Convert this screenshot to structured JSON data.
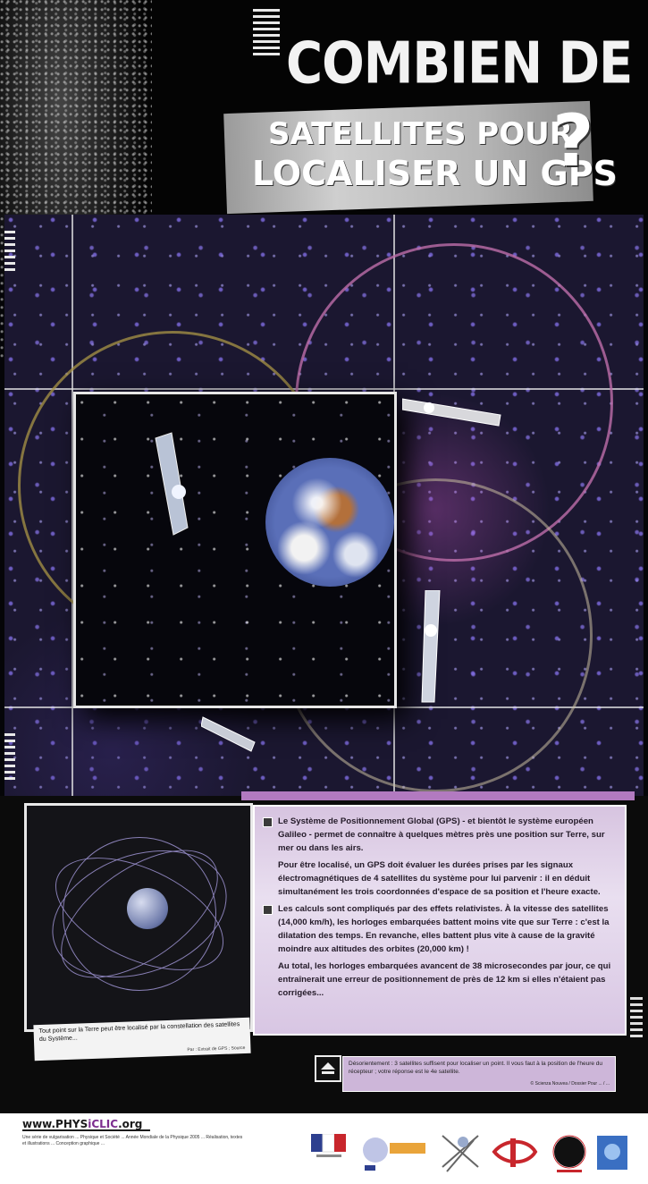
{
  "header": {
    "title_line1": "COMBIEN DE",
    "title_line2": "SATELLITES POUR",
    "title_line3": "LOCALISER UN GPS",
    "title_mark": "?"
  },
  "info": {
    "paragraph1": "Le Système de Positionnement Global (GPS) - et bientôt le système européen Galileo - permet de connaître à quelques mètres près une position sur Terre, sur mer ou dans les airs.",
    "paragraph2": "Pour être localisé, un GPS doit évaluer les durées prises par les signaux électromagnétiques de 4 satellites du système pour lui parvenir : il en déduit simultanément les trois coordonnées d'espace de sa position et l'heure exacte.",
    "paragraph3": "Les calculs sont compliqués par des effets relativistes. À la vitesse des satellites (14,000 km/h), les horloges embarquées battent moins vite que sur Terre : c'est la dilatation des temps. En revanche, elles battent plus vite à cause de la gravité moindre aux altitudes des orbites (20,000 km) !",
    "paragraph4": "Au total, les horloges embarquées avancent de 38 microsecondes par jour, ce qui entraînerait une erreur de positionnement de près de 12 km si elles n'étaient pas corrigées..."
  },
  "caption": {
    "text": "Tout point sur la Terre peut être localisé par la constellation des satellites du Système...",
    "credit": "Par : Extrait de GPS ; Source"
  },
  "note": {
    "text": "Désorientement : 3 satellites suffisent pour localiser un point. Il vous faut à la position de l'heure du récepteur ; votre réponse est le 4e satellite.",
    "credit": "© Scienza Nouvea / Dossier Pour ... / ..."
  },
  "footer": {
    "site_prefix": "www.PHYS",
    "site_clic": "iCLIC",
    "site_suffix": ".org",
    "small_text": "Une série de vulgarisation ... Physique et Société ... Année Mondiale de la Physique 2005 ... Réalisation, textes et illustrations ... Conception graphique ..."
  },
  "colors": {
    "accent_purple": "#b27ac0",
    "textbox_bg": "#e1d3ea",
    "space_bg": "#1b1730"
  },
  "icons": [
    "satellite-icon",
    "earth-icon",
    "note-icon",
    "logo-marianne",
    "logo-cnrs",
    "logo-sfp",
    "logo-eclipse",
    "logo-blue"
  ]
}
